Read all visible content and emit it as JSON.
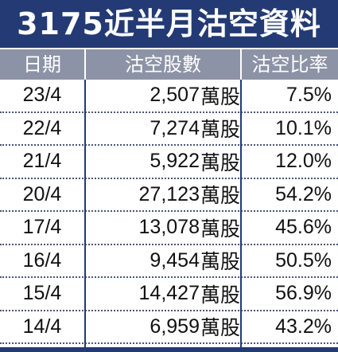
{
  "title": "3175近半月沽空資料",
  "headers": {
    "date": "日期",
    "shares": "沽空股數",
    "ratio": "沽空比率"
  },
  "unit": "萬股",
  "rows": [
    {
      "date": "23/4",
      "shares": "2,507",
      "ratio": "7.5%"
    },
    {
      "date": "22/4",
      "shares": "7,274",
      "ratio": "10.1%"
    },
    {
      "date": "21/4",
      "shares": "5,922",
      "ratio": "12.0%"
    },
    {
      "date": "20/4",
      "shares": "27,123",
      "ratio": "54.2%"
    },
    {
      "date": "17/4",
      "shares": "13,078",
      "ratio": "45.6%"
    },
    {
      "date": "16/4",
      "shares": "9,454",
      "ratio": "50.5%"
    },
    {
      "date": "15/4",
      "shares": "14,427",
      "ratio": "56.9%"
    },
    {
      "date": "14/4",
      "shares": "6,959",
      "ratio": "43.2%"
    }
  ],
  "colors": {
    "title_bg": "#233a74",
    "header_bg": "#8c93a6",
    "separator": "#233a74"
  }
}
